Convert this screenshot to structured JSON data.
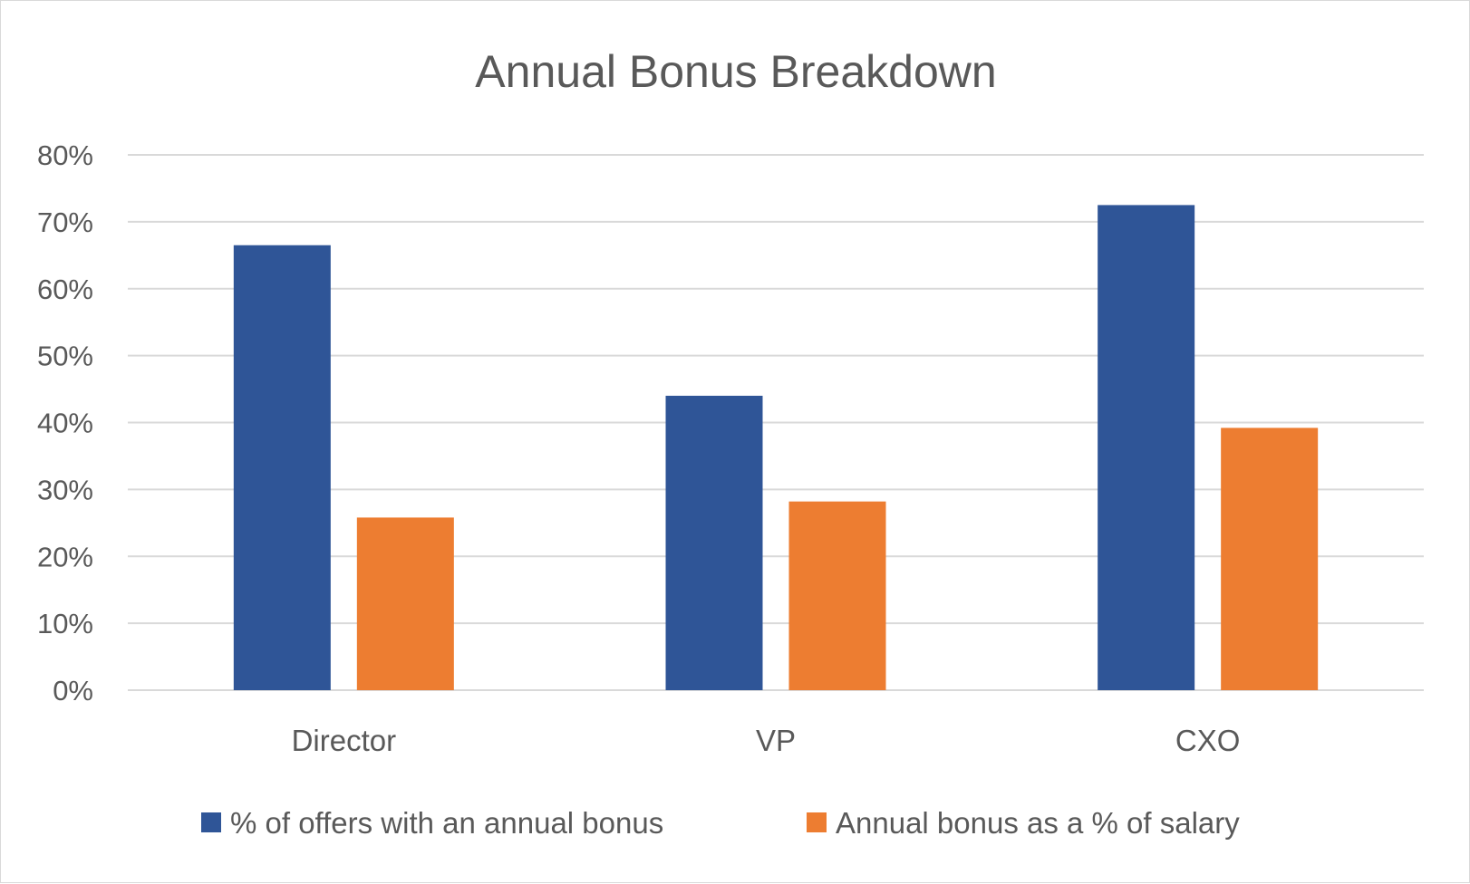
{
  "chart_data": {
    "type": "bar",
    "title": "Annual Bonus Breakdown",
    "xlabel": "",
    "ylabel": "",
    "categories": [
      "Director",
      "VP",
      "CXO"
    ],
    "series": [
      {
        "name": "% of offers with an annual bonus",
        "color": "#2f5597",
        "values": [
          0.665,
          0.44,
          0.725
        ]
      },
      {
        "name": "Annual bonus as a % of salary",
        "color": "#ed7d31",
        "values": [
          0.258,
          0.282,
          0.392
        ]
      }
    ],
    "ylim": [
      0,
      0.8
    ],
    "yticks": [
      0,
      0.1,
      0.2,
      0.3,
      0.4,
      0.5,
      0.6,
      0.7,
      0.8
    ],
    "ytick_labels": [
      "0%",
      "10%",
      "20%",
      "30%",
      "40%",
      "50%",
      "60%",
      "70%",
      "80%"
    ],
    "grid": true,
    "legend_position": "bottom"
  }
}
